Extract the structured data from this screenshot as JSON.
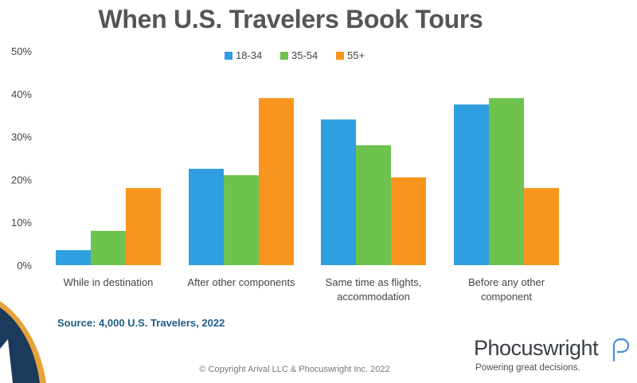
{
  "colors": {
    "series_18_34": "#2f9fdf",
    "series_35_54": "#6ec34e",
    "series_55_plus": "#f9951e",
    "axis_text": "#444444"
  },
  "footer": {
    "source": "Source: 4,000 U.S. Travelers, 2022",
    "copyright": "© Copyright Arival LLC & Phocuswright Inc. 2022"
  },
  "logo": {
    "wordmark": "Phocuswright",
    "tagline": "Powering great decisions."
  },
  "chart_data": {
    "type": "bar",
    "title": "When U.S. Travelers Book Tours",
    "categories": [
      [
        "While in destination"
      ],
      [
        "After other components"
      ],
      [
        "Same time as flights,",
        "accommodation"
      ],
      [
        "Before any other",
        "component"
      ]
    ],
    "series": [
      {
        "name": "18-34",
        "values": [
          3.5,
          22.5,
          34,
          37.5
        ]
      },
      {
        "name": "35-54",
        "values": [
          8,
          21,
          28,
          39
        ]
      },
      {
        "name": "55+",
        "values": [
          18,
          39,
          20.5,
          18
        ]
      }
    ],
    "y_ticks": [
      "0%",
      "10%",
      "20%",
      "30%",
      "40%",
      "50%"
    ],
    "ylim": [
      0,
      50
    ],
    "grid": false,
    "legend_position": "top-center"
  }
}
